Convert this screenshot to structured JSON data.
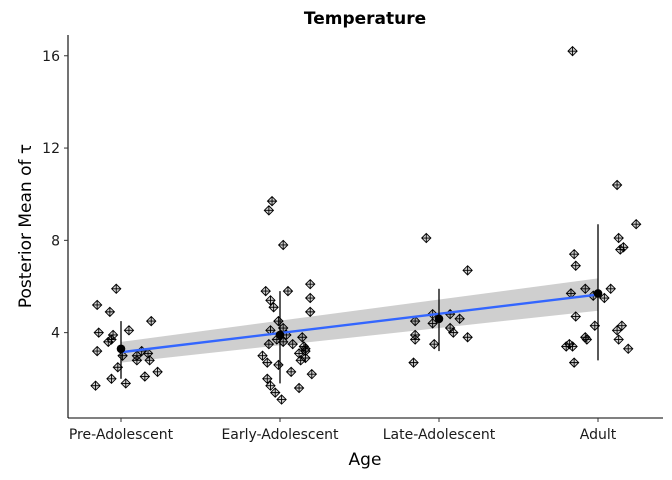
{
  "chart_data": {
    "type": "scatter",
    "title": "Temperature",
    "xlabel": "Age",
    "ylabel": "Posterior Mean of τ",
    "categories": [
      "Pre-Adolescent",
      "Early-Adolescent",
      "Late-Adolescent",
      "Adult"
    ],
    "y_ticks": [
      4,
      8,
      12,
      16
    ],
    "ylim": [
      0.3,
      16.9
    ],
    "grid": false,
    "legend": "none",
    "colors": {
      "points": "#000000",
      "mean": "#000000",
      "fit_line": "#3366FF",
      "ribbon": "#bfbfbf"
    },
    "groups": [
      {
        "category": "Pre-Adolescent",
        "points": [
          {
            "x": 0.85,
            "y": 5.2
          },
          {
            "x": 0.97,
            "y": 5.9
          },
          {
            "x": 0.93,
            "y": 4.9
          },
          {
            "x": 0.86,
            "y": 4.0
          },
          {
            "x": 0.95,
            "y": 3.9
          },
          {
            "x": 0.92,
            "y": 3.6
          },
          {
            "x": 0.94,
            "y": 3.7
          },
          {
            "x": 0.85,
            "y": 3.2
          },
          {
            "x": 1.05,
            "y": 4.1
          },
          {
            "x": 1.19,
            "y": 4.5
          },
          {
            "x": 1.13,
            "y": 3.2
          },
          {
            "x": 1.17,
            "y": 3.1
          },
          {
            "x": 1.1,
            "y": 3.0
          },
          {
            "x": 1.01,
            "y": 3.0
          },
          {
            "x": 1.18,
            "y": 2.8
          },
          {
            "x": 1.1,
            "y": 2.8
          },
          {
            "x": 0.98,
            "y": 2.5
          },
          {
            "x": 1.23,
            "y": 2.3
          },
          {
            "x": 1.15,
            "y": 2.1
          },
          {
            "x": 0.94,
            "y": 2.0
          },
          {
            "x": 1.03,
            "y": 1.8
          },
          {
            "x": 0.84,
            "y": 1.7
          }
        ],
        "mean": 3.3,
        "err_low": 2.0,
        "err_high": 4.5
      },
      {
        "category": "Early-Adolescent",
        "points": [
          {
            "x": 1.95,
            "y": 9.7
          },
          {
            "x": 1.93,
            "y": 9.3
          },
          {
            "x": 2.02,
            "y": 7.8
          },
          {
            "x": 2.19,
            "y": 6.1
          },
          {
            "x": 1.91,
            "y": 5.8
          },
          {
            "x": 2.05,
            "y": 5.8
          },
          {
            "x": 2.19,
            "y": 5.5
          },
          {
            "x": 1.94,
            "y": 5.4
          },
          {
            "x": 1.96,
            "y": 5.1
          },
          {
            "x": 2.19,
            "y": 4.9
          },
          {
            "x": 1.94,
            "y": 4.1
          },
          {
            "x": 2.04,
            "y": 3.9
          },
          {
            "x": 2.14,
            "y": 3.8
          },
          {
            "x": 1.98,
            "y": 3.7
          },
          {
            "x": 2.02,
            "y": 3.6
          },
          {
            "x": 1.93,
            "y": 3.5
          },
          {
            "x": 2.15,
            "y": 3.4
          },
          {
            "x": 2.16,
            "y": 3.3
          },
          {
            "x": 2.16,
            "y": 3.2
          },
          {
            "x": 2.12,
            "y": 3.1
          },
          {
            "x": 1.89,
            "y": 3.0
          },
          {
            "x": 2.16,
            "y": 2.9
          },
          {
            "x": 2.13,
            "y": 2.8
          },
          {
            "x": 1.92,
            "y": 2.7
          },
          {
            "x": 1.99,
            "y": 2.6
          },
          {
            "x": 2.07,
            "y": 2.3
          },
          {
            "x": 2.2,
            "y": 2.2
          },
          {
            "x": 1.92,
            "y": 2.0
          },
          {
            "x": 1.94,
            "y": 1.7
          },
          {
            "x": 2.12,
            "y": 1.6
          },
          {
            "x": 2.01,
            "y": 1.1
          },
          {
            "x": 1.97,
            "y": 1.4
          },
          {
            "x": 1.99,
            "y": 4.5
          },
          {
            "x": 2.02,
            "y": 4.2
          },
          {
            "x": 2.08,
            "y": 3.5
          }
        ],
        "mean": 3.9,
        "err_low": 1.8,
        "err_high": 5.8
      },
      {
        "category": "Late-Adolescent",
        "points": [
          {
            "x": 2.92,
            "y": 8.1
          },
          {
            "x": 3.18,
            "y": 6.7
          },
          {
            "x": 3.07,
            "y": 4.8
          },
          {
            "x": 2.96,
            "y": 4.8
          },
          {
            "x": 2.85,
            "y": 4.5
          },
          {
            "x": 2.96,
            "y": 4.4
          },
          {
            "x": 3.13,
            "y": 4.6
          },
          {
            "x": 3.07,
            "y": 4.2
          },
          {
            "x": 3.09,
            "y": 4.0
          },
          {
            "x": 2.85,
            "y": 3.9
          },
          {
            "x": 3.18,
            "y": 3.8
          },
          {
            "x": 2.85,
            "y": 3.7
          },
          {
            "x": 2.97,
            "y": 3.5
          },
          {
            "x": 2.84,
            "y": 2.7
          }
        ],
        "mean": 4.6,
        "err_low": 3.2,
        "err_high": 5.9
      },
      {
        "category": "Adult",
        "points": [
          {
            "x": 3.84,
            "y": 16.2
          },
          {
            "x": 4.12,
            "y": 10.4
          },
          {
            "x": 4.24,
            "y": 8.7
          },
          {
            "x": 4.13,
            "y": 8.1
          },
          {
            "x": 4.16,
            "y": 7.7
          },
          {
            "x": 4.14,
            "y": 7.6
          },
          {
            "x": 3.85,
            "y": 7.4
          },
          {
            "x": 3.86,
            "y": 6.9
          },
          {
            "x": 3.92,
            "y": 5.9
          },
          {
            "x": 4.08,
            "y": 5.9
          },
          {
            "x": 3.83,
            "y": 5.7
          },
          {
            "x": 3.97,
            "y": 5.6
          },
          {
            "x": 4.04,
            "y": 5.5
          },
          {
            "x": 3.86,
            "y": 4.7
          },
          {
            "x": 3.98,
            "y": 4.3
          },
          {
            "x": 4.15,
            "y": 4.3
          },
          {
            "x": 4.12,
            "y": 4.1
          },
          {
            "x": 3.92,
            "y": 3.8
          },
          {
            "x": 3.93,
            "y": 3.7
          },
          {
            "x": 4.13,
            "y": 3.7
          },
          {
            "x": 3.8,
            "y": 3.4
          },
          {
            "x": 3.82,
            "y": 3.5
          },
          {
            "x": 3.84,
            "y": 3.4
          },
          {
            "x": 4.19,
            "y": 3.3
          },
          {
            "x": 3.85,
            "y": 2.7
          }
        ],
        "mean": 5.7,
        "err_low": 2.8,
        "err_high": 8.7
      }
    ],
    "fit_line": {
      "x": [
        1,
        4
      ],
      "y": [
        3.15,
        5.65
      ],
      "ribbon_low": [
        2.7,
        4.95
      ],
      "ribbon_high": [
        3.6,
        6.35
      ]
    }
  }
}
